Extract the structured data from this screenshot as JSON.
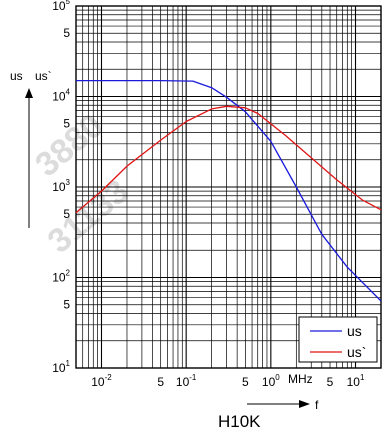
{
  "chart_data": {
    "type": "line",
    "title": "H10K",
    "x_scale": "log",
    "y_scale": "log",
    "x_unit_label": "MHz",
    "x_axis_symbol": "f",
    "y_axis_labels": [
      "us",
      "us`"
    ],
    "xlim": [
      0.005,
      20
    ],
    "ylim": [
      10,
      100000
    ],
    "grid": true,
    "legend_position": "bottom-right",
    "x_tick_labels": [
      {
        "value": 0.01,
        "base": "10",
        "exp": "-2"
      },
      {
        "value": 0.05,
        "base": "5",
        "exp": ""
      },
      {
        "value": 0.1,
        "base": "10",
        "exp": "-1"
      },
      {
        "value": 0.5,
        "base": "5",
        "exp": ""
      },
      {
        "value": 1,
        "base": "10",
        "exp": "0"
      },
      {
        "value": 5,
        "base": "5",
        "exp": ""
      },
      {
        "value": 10,
        "base": "10",
        "exp": "1"
      }
    ],
    "y_tick_labels": [
      {
        "value": 100000,
        "base": "10",
        "exp": "5"
      },
      {
        "value": 50000,
        "base": "5",
        "exp": ""
      },
      {
        "value": 10000,
        "base": "10",
        "exp": "4"
      },
      {
        "value": 5000,
        "base": "5",
        "exp": ""
      },
      {
        "value": 1000,
        "base": "10",
        "exp": "3"
      },
      {
        "value": 500,
        "base": "5",
        "exp": ""
      },
      {
        "value": 100,
        "base": "10",
        "exp": "2"
      },
      {
        "value": 50,
        "base": "5",
        "exp": ""
      },
      {
        "value": 10,
        "base": "10",
        "exp": "1"
      }
    ],
    "series": [
      {
        "name": "us",
        "color": "#1a1adb",
        "points": [
          [
            0.005,
            15000
          ],
          [
            0.05,
            15000
          ],
          [
            0.12,
            14800
          ],
          [
            0.2,
            12500
          ],
          [
            0.3,
            9800
          ],
          [
            0.5,
            6800
          ],
          [
            1,
            3200
          ],
          [
            2,
            1000
          ],
          [
            4,
            300
          ],
          [
            8,
            130
          ],
          [
            20,
            55
          ]
        ]
      },
      {
        "name": "us`",
        "color": "#e01515",
        "points": [
          [
            0.005,
            520
          ],
          [
            0.01,
            900
          ],
          [
            0.02,
            1700
          ],
          [
            0.05,
            3300
          ],
          [
            0.1,
            5300
          ],
          [
            0.2,
            7300
          ],
          [
            0.3,
            7800
          ],
          [
            0.5,
            7500
          ],
          [
            0.7,
            6500
          ],
          [
            1.5,
            3700
          ],
          [
            3,
            2100
          ],
          [
            6,
            1200
          ],
          [
            12,
            720
          ],
          [
            20,
            560
          ]
        ]
      }
    ],
    "watermark": "3880 31133"
  }
}
